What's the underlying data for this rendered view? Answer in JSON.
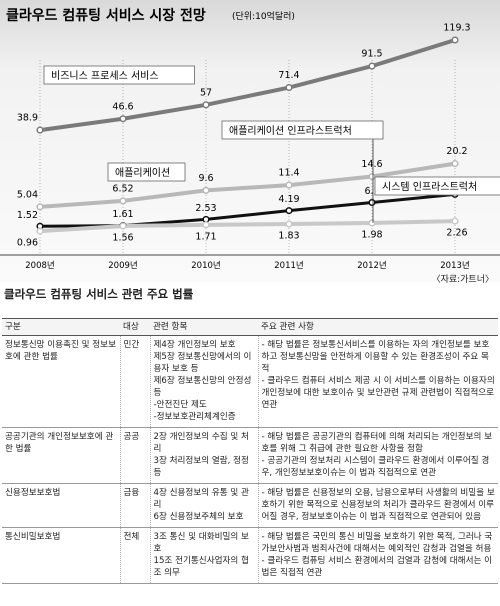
{
  "chart_data": {
    "type": "line",
    "title": "클라우드 컴퓨팅 서비스 시장 전망",
    "subtitle": "(단위:10억달러)",
    "categories": [
      "2008년",
      "2009년",
      "2010년",
      "2011년",
      "2012년",
      "2013년"
    ],
    "grid": true,
    "series": [
      {
        "name": "비즈니스 프로세스 서비스",
        "color": "#7a7a7a",
        "values": [
          38.9,
          46.6,
          57,
          71.4,
          91.5,
          119.3
        ]
      },
      {
        "name": "애플리케이션",
        "color": "#b8b8b8",
        "values": [
          5.04,
          6.52,
          9.6,
          11.4,
          14.6,
          20.2
        ]
      },
      {
        "name": "시스템 인프라스트럭처",
        "color": "#111111",
        "values": [
          1.52,
          1.61,
          2.53,
          4.19,
          6.1,
          8.37
        ]
      },
      {
        "name": "애플리케이션 인프라스트럭처",
        "color": "#c8c8c8",
        "values": [
          0.96,
          1.56,
          1.71,
          1.83,
          1.98,
          2.26
        ]
      }
    ]
  },
  "source": "〈자료:가트너〉",
  "table": {
    "title": "클라우드 컴퓨팅 서비스 관련 주요 법률",
    "header": [
      "구분",
      "대상",
      "관련 항목",
      "주요 관련 사항"
    ],
    "rows": [
      [
        [
          "정보통신망 이용촉진 및 정보보호에 관한 법률"
        ],
        [
          "민간"
        ],
        [
          "제4장 개인정보의 보호",
          "제5장 정보통신망에서의 이용자 보호 등",
          "제6장 정보통신망의 안정성 등",
          "-안전진단 제도",
          "-정보보호관리체계인증"
        ],
        [
          "- 해당 법률은 정보통신서비스를 이용하는 자의 개인정보를 보호하고 정보통신망을 안전하게 이용할 수 있는 환경조성이 주요 목적",
          "- 클라우드 컴퓨터 서비스 제공 시 이 서비스를 이용하는 이용자의 개인정보에 대한 보호이슈 및 보안관련 규제 관련법이 직접적으로 연관"
        ]
      ],
      [
        [
          "공공기관의 개인정보보호에 관한 법률"
        ],
        [
          "공공"
        ],
        [
          "2장 개인정보의 수집 및 처리",
          "3장 처리정보의 열람, 정정 등"
        ],
        [
          "- 해당 법률은 공공기관의 컴퓨터에 의해 처리되는 개인정보의 보호를 위해 그 취급에 관한 필요한 사항을 정함",
          "- 공공기관의 정보처리 시스템이 클라우드 환경에서 이루어질 경우, 개인정보보호이슈는 이 법과 직접적으로 연관"
        ]
      ],
      [
        [
          "신용정보보호법"
        ],
        [
          "금융"
        ],
        [
          "4장 신용정보의 유통 및 관리",
          "6장 신용정보주체의 보호"
        ],
        [
          "- 해당 법률은 신용정보의 오용, 남용으로부터 사생활의 비밀을 보호하기 위한 목적으로 신용정보의 처리가 클라우드 환경에서 이루어질 경우, 정보보호이슈는 이 법과 직접적으로 연관되어 있음"
        ]
      ],
      [
        [
          "통신비밀보호법"
        ],
        [
          "전체"
        ],
        [
          "3조 통신 및 대화비밀의 보호",
          "15조 전기통신사업자의 협조 의무"
        ],
        [
          "- 해당 법률은 국민의 통신 비밀을 보호하기 위한 목적, 그러나 국가보안사범과 범죄사건에 대해서는 예외적인 감청과 검열을 허용",
          "- 클라우드 컴퓨팅 서비스 환경에서의 검열과 감청에 대해서는 이 법은 직접적 연관"
        ]
      ]
    ]
  }
}
